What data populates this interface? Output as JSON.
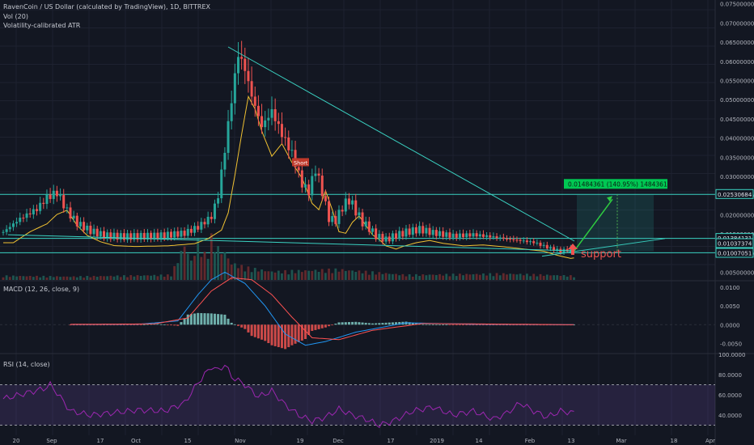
{
  "header": {
    "title": "RavenCoin / US Dollar (calculated by TradingView), 1D, BITTREX",
    "volume": "Vol (20)",
    "atr": "Volatility-calibrated ATR"
  },
  "macd": {
    "label": "MACD (12, 26, close, 9)",
    "ticks": [
      "0.0100",
      "0.0050",
      "0.0000",
      "-0.0050"
    ]
  },
  "rsi": {
    "label": "RSI (14, close)",
    "ticks": [
      "100.0000",
      "80.0000",
      "60.0000",
      "40.0000"
    ]
  },
  "annotations": {
    "short": "Short",
    "support": "support",
    "target": "0.01484361 (140.95%) 1484361"
  },
  "colors": {
    "background": "#131722",
    "up": "#26a69a",
    "down": "#ef5350",
    "trendline": "#3ad2c2",
    "atr": "#f1c232",
    "arrow": "#2ecc40",
    "rsi": "#9c27b0"
  },
  "chart_data": {
    "type": "candlestick",
    "price_axis": {
      "ticks": [
        "0.07500000",
        "0.07000000",
        "0.06500000",
        "0.06000000",
        "0.05500000",
        "0.05000000",
        "0.04500000",
        "0.04000000",
        "0.03500000",
        "0.03000000",
        "0.02500000",
        "0.02000000",
        "0.01500000",
        "0.01000000",
        "0.00500000"
      ],
      "min": 0.003,
      "max": 0.076
    },
    "price_labels": [
      "0.02530684",
      "0.01384131",
      "0.01037374",
      "0.01007051"
    ],
    "time_axis": [
      "20",
      "Sep",
      "17",
      "Oct",
      "15",
      "Nov",
      "19",
      "Dec",
      "17",
      "2019",
      "14",
      "Feb",
      "13",
      "Mar",
      "18",
      "Apr"
    ],
    "levels": [
      0.0253,
      0.01384,
      0.0101
    ],
    "price_path": [
      [
        0,
        0.0155
      ],
      [
        5,
        0.019
      ],
      [
        10,
        0.0215
      ],
      [
        13,
        0.0245
      ],
      [
        16,
        0.0258
      ],
      [
        19,
        0.021
      ],
      [
        22,
        0.0178
      ],
      [
        26,
        0.0158
      ],
      [
        30,
        0.0146
      ],
      [
        36,
        0.0143
      ],
      [
        46,
        0.0145
      ],
      [
        54,
        0.0152
      ],
      [
        58,
        0.0168
      ],
      [
        62,
        0.0195
      ],
      [
        64,
        0.025
      ],
      [
        66,
        0.037
      ],
      [
        68,
        0.05
      ],
      [
        70,
        0.062
      ],
      [
        72,
        0.058
      ],
      [
        74,
        0.051
      ],
      [
        77,
        0.043
      ],
      [
        80,
        0.047
      ],
      [
        83,
        0.041
      ],
      [
        86,
        0.036
      ],
      [
        89,
        0.028
      ],
      [
        91,
        0.026
      ],
      [
        93,
        0.032
      ],
      [
        95,
        0.026
      ],
      [
        97,
        0.019
      ],
      [
        99,
        0.0185
      ],
      [
        101,
        0.022
      ],
      [
        103,
        0.024
      ],
      [
        105,
        0.021
      ],
      [
        107,
        0.018
      ],
      [
        109,
        0.0165
      ],
      [
        111,
        0.0145
      ],
      [
        114,
        0.0135
      ],
      [
        116,
        0.0143
      ],
      [
        120,
        0.0155
      ],
      [
        124,
        0.0162
      ],
      [
        128,
        0.0153
      ],
      [
        134,
        0.0145
      ],
      [
        140,
        0.0148
      ],
      [
        146,
        0.0142
      ],
      [
        152,
        0.0135
      ],
      [
        158,
        0.0128
      ],
      [
        162,
        0.0115
      ],
      [
        166,
        0.0105
      ],
      [
        170,
        0.0112
      ]
    ],
    "volume_path": [
      [
        0,
        0.1
      ],
      [
        20,
        0.08
      ],
      [
        50,
        0.12
      ],
      [
        54,
        0.85
      ],
      [
        56,
        0.45
      ],
      [
        58,
        0.9
      ],
      [
        60,
        0.6
      ],
      [
        62,
        1.0
      ],
      [
        64,
        0.75
      ],
      [
        66,
        0.65
      ],
      [
        68,
        0.4
      ],
      [
        72,
        0.3
      ],
      [
        80,
        0.2
      ],
      [
        100,
        0.25
      ],
      [
        120,
        0.12
      ],
      [
        150,
        0.15
      ],
      [
        170,
        0.1
      ]
    ],
    "macd_series": [
      [
        0,
        0.0
      ],
      [
        40,
        0.0001
      ],
      [
        52,
        0.001
      ],
      [
        58,
        0.008
      ],
      [
        62,
        0.012
      ],
      [
        66,
        0.014
      ],
      [
        72,
        0.011
      ],
      [
        78,
        0.005
      ],
      [
        84,
        -0.0025
      ],
      [
        90,
        -0.0055
      ],
      [
        96,
        -0.0045
      ],
      [
        105,
        -0.002
      ],
      [
        120,
        0.0005
      ],
      [
        140,
        0.0001
      ],
      [
        170,
        0.0
      ]
    ],
    "signal_series": [
      [
        0,
        0.0
      ],
      [
        45,
        0.0002
      ],
      [
        55,
        0.0018
      ],
      [
        62,
        0.009
      ],
      [
        68,
        0.0125
      ],
      [
        74,
        0.012
      ],
      [
        80,
        0.008
      ],
      [
        86,
        0.002
      ],
      [
        92,
        -0.0035
      ],
      [
        100,
        -0.004
      ],
      [
        110,
        -0.0015
      ],
      [
        125,
        0.0003
      ],
      [
        140,
        0.0002
      ],
      [
        170,
        0.0
      ]
    ],
    "rsi_series": [
      [
        0,
        56
      ],
      [
        12,
        66
      ],
      [
        14,
        70
      ],
      [
        16,
        62
      ],
      [
        20,
        44
      ],
      [
        26,
        40
      ],
      [
        32,
        42
      ],
      [
        40,
        45
      ],
      [
        48,
        44
      ],
      [
        54,
        52
      ],
      [
        58,
        72
      ],
      [
        62,
        88
      ],
      [
        64,
        84
      ],
      [
        66,
        90
      ],
      [
        68,
        78
      ],
      [
        70,
        74
      ],
      [
        72,
        70
      ],
      [
        76,
        58
      ],
      [
        80,
        64
      ],
      [
        84,
        50
      ],
      [
        88,
        40
      ],
      [
        92,
        34
      ],
      [
        96,
        38
      ],
      [
        100,
        46
      ],
      [
        104,
        40
      ],
      [
        108,
        36
      ],
      [
        112,
        30
      ],
      [
        116,
        34
      ],
      [
        122,
        44
      ],
      [
        128,
        48
      ],
      [
        134,
        40
      ],
      [
        140,
        44
      ],
      [
        146,
        36
      ],
      [
        150,
        42
      ],
      [
        154,
        52
      ],
      [
        158,
        44
      ],
      [
        162,
        38
      ],
      [
        166,
        44
      ],
      [
        170,
        42
      ]
    ],
    "rsi_band": [
      30,
      70
    ]
  }
}
